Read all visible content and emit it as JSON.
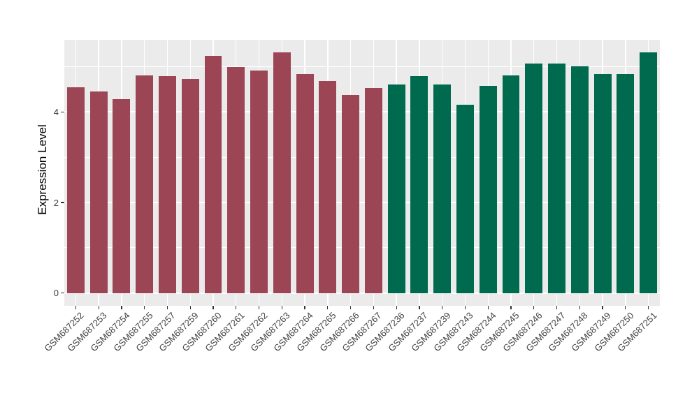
{
  "chart_data": {
    "type": "bar",
    "title": "",
    "xlabel": "",
    "ylabel": "Expression Level",
    "ylim": [
      -0.28,
      5.59
    ],
    "yticks": [
      0,
      2,
      4
    ],
    "minor_yticks": [
      1,
      3,
      5
    ],
    "grid": "on",
    "legend": "none",
    "panel_bg": "#EBEBEB",
    "gridline_color": "#FFFFFF",
    "bar_width_ratio": 0.76,
    "categories": [
      "GSM687252",
      "GSM687253",
      "GSM687254",
      "GSM687255",
      "GSM687257",
      "GSM687259",
      "GSM687260",
      "GSM687261",
      "GSM687262",
      "GSM687263",
      "GSM687264",
      "GSM687265",
      "GSM687266",
      "GSM687267",
      "GSM687236",
      "GSM687237",
      "GSM687239",
      "GSM687243",
      "GSM687244",
      "GSM687245",
      "GSM687246",
      "GSM687247",
      "GSM687248",
      "GSM687249",
      "GSM687250",
      "GSM687251"
    ],
    "values": [
      4.55,
      4.45,
      4.28,
      4.8,
      4.79,
      4.73,
      5.23,
      4.99,
      4.91,
      5.31,
      4.83,
      4.68,
      4.38,
      4.53,
      4.61,
      4.79,
      4.61,
      4.16,
      4.58,
      4.8,
      5.06,
      5.07,
      5.0,
      4.83,
      4.83,
      5.32
    ],
    "groups": [
      0,
      0,
      0,
      0,
      0,
      0,
      0,
      0,
      0,
      0,
      0,
      0,
      0,
      0,
      1,
      1,
      1,
      1,
      1,
      1,
      1,
      1,
      1,
      1,
      1,
      1
    ],
    "group_colors": [
      "#9C4554",
      "#006A4E"
    ]
  }
}
